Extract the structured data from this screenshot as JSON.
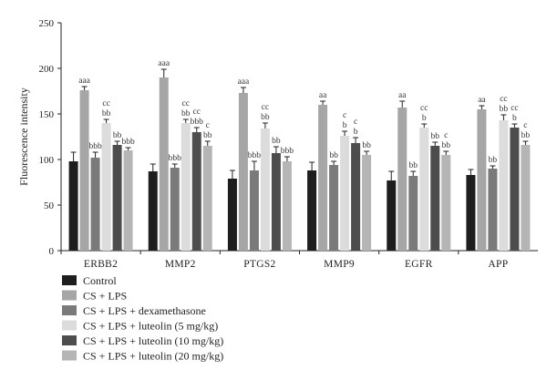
{
  "chart_data": {
    "type": "bar",
    "title": "",
    "xlabel": "",
    "ylabel": "Fluorescence intensity",
    "ylim": [
      0,
      250
    ],
    "yticks": [
      0,
      50,
      100,
      150,
      200,
      250
    ],
    "grid": false,
    "legend_position": "bottom-left",
    "categories": [
      "ERBB2",
      "MMP2",
      "PTGS2",
      "MMP9",
      "EGFR",
      "APP"
    ],
    "series": [
      {
        "name": "Control",
        "color": "#1e1e1e",
        "values": [
          98,
          87,
          79,
          88,
          77,
          83
        ],
        "errors": [
          10,
          8,
          9,
          9,
          10,
          6
        ],
        "annotations": [
          [],
          [],
          [],
          [],
          [],
          []
        ]
      },
      {
        "name": "CS + LPS",
        "color": "#a6a6a6",
        "values": [
          176,
          190,
          173,
          160,
          157,
          155
        ],
        "errors": [
          4,
          9,
          6,
          4,
          7,
          4
        ],
        "annotations": [
          [
            "aaa"
          ],
          [
            "aaa"
          ],
          [
            "aaa"
          ],
          [
            "aa"
          ],
          [
            "aa"
          ],
          [
            "aa"
          ]
        ]
      },
      {
        "name": "CS + LPS + dexamethasone",
        "color": "#7a7a7a",
        "values": [
          102,
          91,
          88,
          94,
          82,
          90
        ],
        "errors": [
          6,
          4,
          10,
          4,
          5,
          3
        ],
        "annotations": [
          [
            "bbb"
          ],
          [
            "bbb"
          ],
          [
            "bbb"
          ],
          [
            "bb"
          ],
          [
            "bb"
          ],
          [
            "bb"
          ]
        ]
      },
      {
        "name": "CS + LPS + luteolin (5 mg/kg)",
        "color": "#dcdcdc",
        "values": [
          140,
          140,
          134,
          126,
          135,
          143
        ],
        "errors": [
          4,
          4,
          6,
          5,
          4,
          6
        ],
        "annotations": [
          [
            "cc",
            "bb"
          ],
          [
            "cc",
            "bb"
          ],
          [
            "cc",
            "bb"
          ],
          [
            "c",
            "b"
          ],
          [
            "cc",
            "b"
          ],
          [
            "cc",
            "bb"
          ]
        ]
      },
      {
        "name": "CS + LPS + luteolin (10 mg/kg)",
        "color": "#4d4d4d",
        "values": [
          116,
          130,
          107,
          118,
          115,
          135
        ],
        "errors": [
          4,
          5,
          7,
          6,
          4,
          4
        ],
        "annotations": [
          [
            "bb"
          ],
          [
            "cc",
            "bbb"
          ],
          [
            "bb"
          ],
          [
            "c",
            "b"
          ],
          [
            "bb"
          ],
          [
            "cc",
            "b"
          ]
        ]
      },
      {
        "name": "CS + LPS + luteolin (20 mg/kg)",
        "color": "#b5b5b5",
        "values": [
          110,
          115,
          98,
          105,
          105,
          116
        ],
        "errors": [
          3,
          5,
          5,
          4,
          4,
          4
        ],
        "annotations": [
          [
            "bbb"
          ],
          [
            "c",
            "bb"
          ],
          [
            "bbb"
          ],
          [
            "bb"
          ],
          [
            "c",
            "bb"
          ],
          [
            "c",
            "bb"
          ]
        ]
      }
    ]
  },
  "legend_labels": [
    "Control",
    "CS + LPS",
    "CS + LPS + dexamethasone",
    "CS + LPS + luteolin (5 mg/kg)",
    "CS + LPS + luteolin (10 mg/kg)",
    "CS + LPS + luteolin (20 mg/kg)"
  ]
}
